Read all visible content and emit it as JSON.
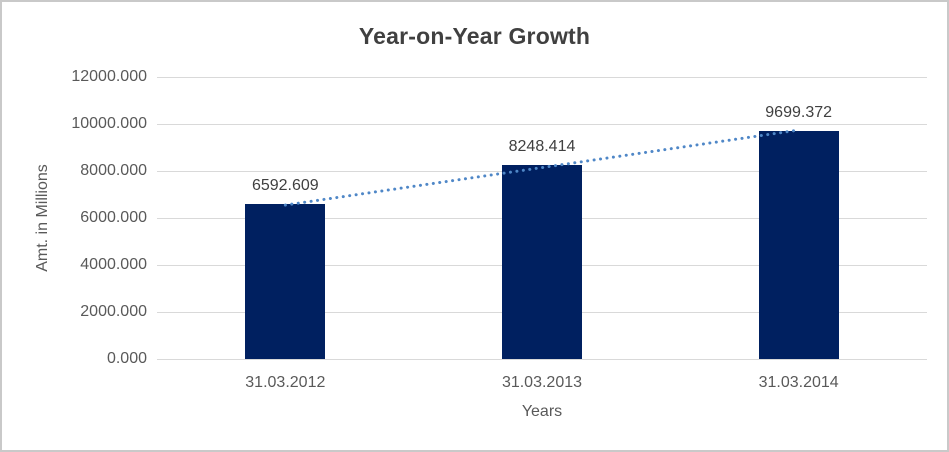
{
  "window": {
    "background": "#ffffff",
    "border_color": "#c9c9c9"
  },
  "chart_data": {
    "type": "bar",
    "title": "Year-on-Year Growth",
    "xlabel": "Years",
    "ylabel": "Amt. in Millions",
    "categories": [
      "31.03.2012",
      "31.03.2013",
      "31.03.2014"
    ],
    "values": [
      6592.609,
      8248.414,
      9699.372
    ],
    "data_labels": [
      "6592.609",
      "8248.414",
      "9699.372"
    ],
    "ylim": [
      0,
      12000
    ],
    "ytick_step": 2000,
    "ytick_labels": [
      "0.000",
      "2000.000",
      "4000.000",
      "6000.000",
      "8000.000",
      "10000.000",
      "12000.000"
    ],
    "grid": true,
    "legend": "none",
    "trendline": {
      "type": "linear",
      "style": "dotted",
      "color": "#4f87c7"
    },
    "colors": {
      "bar": "#002060",
      "gridline": "#d9d9d9",
      "title_text": "#404040",
      "axis_text": "#595959",
      "label_text": "#404040"
    }
  }
}
